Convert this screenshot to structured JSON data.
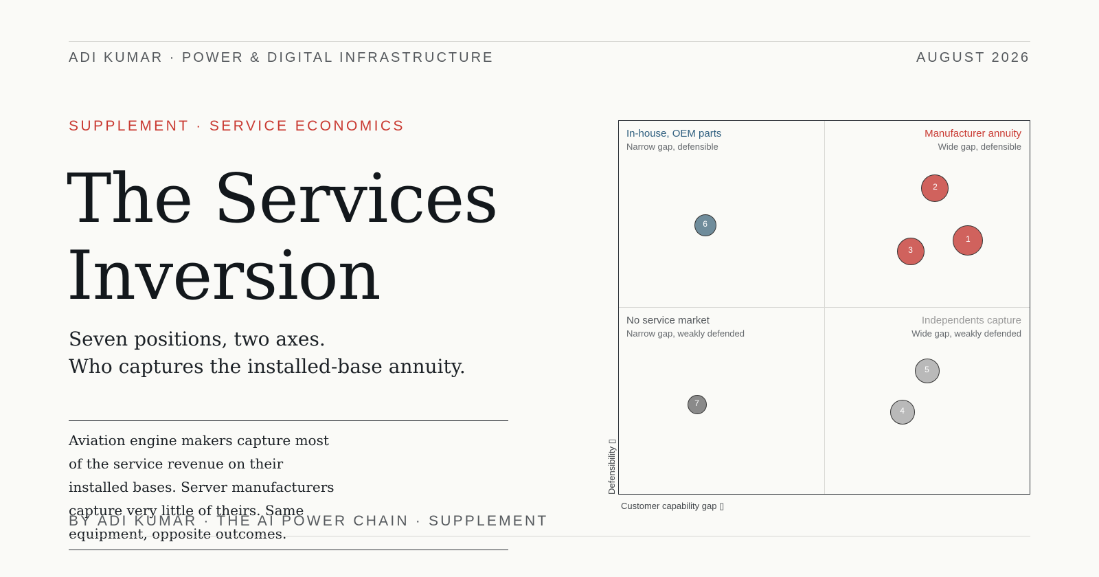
{
  "header": {
    "left": "ADI KUMAR · POWER & DIGITAL INFRASTRUCTURE",
    "right": "AUGUST 2026"
  },
  "eyebrow": "SUPPLEMENT · SERVICE ECONOMICS",
  "title_lines": [
    "The Services",
    "Inversion"
  ],
  "subtitle_lines": [
    "Seven positions, two axes.",
    "Who captures the installed-base annuity."
  ],
  "body": "Aviation engine makers capture most of the service revenue on their installed bases. Server manufacturers capture very little of theirs. Same equipment, opposite outcomes.",
  "byline": "BY ADI KUMAR · THE AI POWER CHAIN · SUPPLEMENT",
  "colors": {
    "accent": "#c93a32",
    "blue": "#2f5f7f",
    "red_dot": "#d0625d",
    "blue_dot": "#6f8c9b",
    "grey_dot": "#b9b9b9",
    "dark_dot": "#8a8a8a"
  },
  "diagram": {
    "quadrants": {
      "top_left": {
        "title": "In-house, OEM parts",
        "sub": "Narrow gap, defensible"
      },
      "top_right": {
        "title": "Manufacturer annuity",
        "sub": "Wide gap, defensible"
      },
      "bottom_left": {
        "title": "No service market",
        "sub": "Narrow gap, weakly defended"
      },
      "bottom_right": {
        "title": "Independents capture",
        "sub": "Wide gap, weakly defended"
      }
    },
    "x_axis_label": "Customer capability gap ▯",
    "y_axis_label": "Defensibility ▯",
    "points": [
      {
        "label": "1",
        "gap": 0.85,
        "defense": 0.68,
        "color": "#d0625d"
      },
      {
        "label": "2",
        "gap": 0.77,
        "defense": 0.82,
        "color": "#d0625d"
      },
      {
        "label": "3",
        "gap": 0.71,
        "defense": 0.65,
        "color": "#d0625d"
      },
      {
        "label": "4",
        "gap": 0.69,
        "defense": 0.22,
        "color": "#b9b9b9"
      },
      {
        "label": "5",
        "gap": 0.75,
        "defense": 0.33,
        "color": "#b9b9b9"
      },
      {
        "label": "6",
        "gap": 0.21,
        "defense": 0.72,
        "color": "#6f8c9b"
      },
      {
        "label": "7",
        "gap": 0.19,
        "defense": 0.24,
        "color": "#8a8a8a"
      }
    ]
  }
}
